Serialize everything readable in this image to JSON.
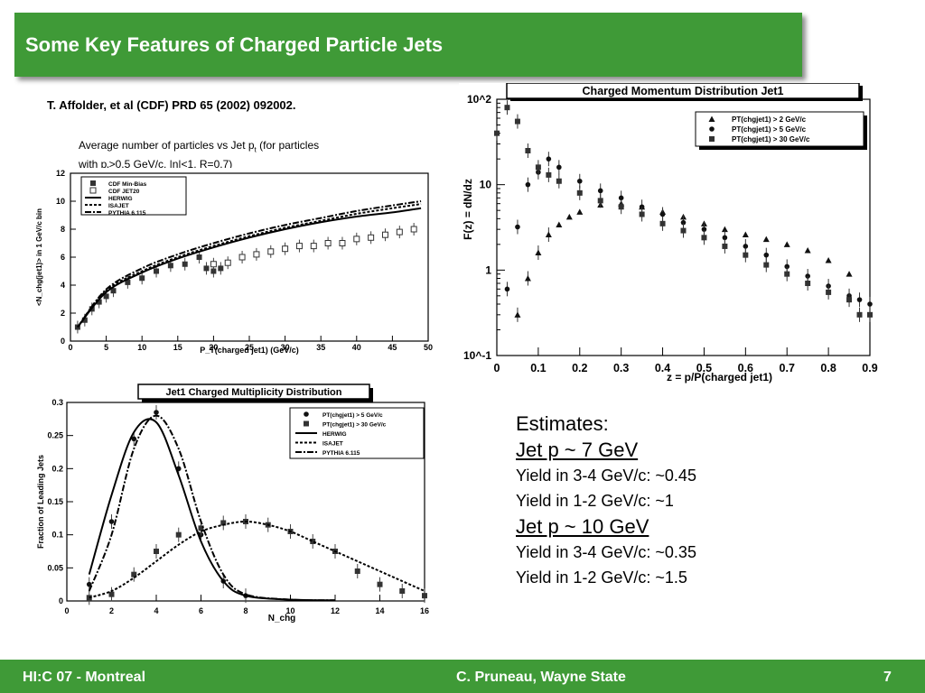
{
  "slide": {
    "title": "Some Key Features of Charged Particle Jets",
    "reference": "T. Affolder, et al (CDF) PRD 65 (2002) 092002.",
    "caption_line1": "Average number of particles vs Jet p",
    "caption_line1_sub": "t",
    "caption_line1_tail": " (for particles",
    "caption_line2_a": "with p",
    "caption_line2_sub": "t",
    "caption_line2_b": ">0.5 GeV/c, |η|<1, R=0.7)"
  },
  "estimates": {
    "heading": "Estimates:",
    "groups": [
      {
        "title": "Jet p ~ 7 GeV",
        "lines": [
          "Yield in 3-4 GeV/c: ~0.45",
          "Yield in 1-2 GeV/c: ~1"
        ]
      },
      {
        "title": "Jet p ~ 10 GeV",
        "lines": [
          "Yield in 3-4 GeV/c: ~0.35",
          "Yield in 1-2 GeV/c: ~1.5"
        ]
      }
    ]
  },
  "footer": {
    "left": "HI:C 07 - Montreal",
    "center": "C. Pruneau, Wayne State",
    "page": "7"
  },
  "chart_data": [
    {
      "type": "scatter",
      "title": "",
      "xlabel": "P_T(charged jet1)  (GeV/c)",
      "ylabel": "<N_chg(jet1)> in 1 GeV/c bin",
      "xlim": [
        0,
        50
      ],
      "ylim": [
        0,
        12
      ],
      "xticks": [
        "0",
        "5",
        "10",
        "15",
        "20",
        "25",
        "30",
        "35",
        "40",
        "45",
        "50"
      ],
      "yticks": [
        "0",
        "2",
        "4",
        "6",
        "8",
        "10",
        "12"
      ],
      "legend": [
        "CDF Min-Bias",
        "CDF JET20",
        "HERWIG",
        "ISAJET",
        "PYTHIA 6.115"
      ],
      "series": [
        {
          "name": "CDF Min-Bias",
          "x": [
            1,
            2,
            3,
            4,
            5,
            6,
            8,
            10,
            12,
            14,
            16,
            18,
            19,
            20,
            21
          ],
          "y": [
            1.0,
            1.5,
            2.3,
            2.8,
            3.2,
            3.6,
            4.2,
            4.5,
            5.0,
            5.4,
            5.5,
            6.0,
            5.2,
            5.0,
            5.2
          ]
        },
        {
          "name": "CDF JET20",
          "x": [
            20,
            22,
            24,
            26,
            28,
            30,
            32,
            34,
            36,
            38,
            40,
            42,
            44,
            46,
            48
          ],
          "y": [
            5.5,
            5.6,
            6.0,
            6.2,
            6.4,
            6.6,
            6.8,
            6.8,
            7.0,
            7.0,
            7.3,
            7.4,
            7.6,
            7.8,
            8.0
          ]
        },
        {
          "name": "HERWIG",
          "x": [
            1,
            5,
            10,
            15,
            20,
            25,
            30,
            35,
            40,
            45,
            49
          ],
          "y": [
            1.0,
            3.5,
            4.9,
            5.9,
            6.7,
            7.4,
            8.0,
            8.5,
            8.9,
            9.2,
            9.5
          ]
        },
        {
          "name": "ISAJET",
          "x": [
            1,
            5,
            10,
            15,
            20,
            25,
            30,
            35,
            40,
            45,
            49
          ],
          "y": [
            1.0,
            3.6,
            5.0,
            6.0,
            6.8,
            7.5,
            8.1,
            8.6,
            9.1,
            9.5,
            9.8
          ]
        },
        {
          "name": "PYTHIA 6.115",
          "x": [
            1,
            5,
            10,
            15,
            20,
            25,
            30,
            35,
            40,
            45,
            49
          ],
          "y": [
            1.0,
            3.7,
            5.2,
            6.2,
            7.0,
            7.7,
            8.3,
            8.8,
            9.3,
            9.7,
            10.0
          ]
        }
      ]
    },
    {
      "type": "scatter",
      "title": "Charged Momentum Distribution Jet1",
      "xlabel": "z = p/P(charged jet1)",
      "ylabel": "F(z) = dN/dz",
      "xlim": [
        0,
        0.9
      ],
      "ylim": [
        0.1,
        100
      ],
      "yscale": "log",
      "xticks": [
        "0",
        "0.1",
        "0.2",
        "0.3",
        "0.4",
        "0.5",
        "0.6",
        "0.7",
        "0.8",
        "0.9"
      ],
      "yticks": [
        "10^-1",
        "1",
        "10",
        "10^2"
      ],
      "legend": [
        "PT(chgjet1) > 2 GeV/c",
        "PT(chgjet1) > 5 GeV/c",
        "PT(chgjet1) > 30 GeV/c"
      ],
      "series": [
        {
          "name": "PT(chgjet1) > 2 GeV/c",
          "x": [
            0.05,
            0.075,
            0.1,
            0.125,
            0.15,
            0.175,
            0.2,
            0.25,
            0.3,
            0.35,
            0.4,
            0.45,
            0.5,
            0.55,
            0.6,
            0.65,
            0.7,
            0.75,
            0.8,
            0.85
          ],
          "y": [
            0.3,
            0.8,
            1.6,
            2.6,
            3.4,
            4.2,
            4.8,
            5.8,
            6.0,
            5.5,
            4.8,
            4.2,
            3.5,
            3.0,
            2.6,
            2.3,
            2.0,
            1.7,
            1.3,
            0.9
          ]
        },
        {
          "name": "PT(chgjet1) > 5 GeV/c",
          "x": [
            0.025,
            0.05,
            0.075,
            0.1,
            0.125,
            0.15,
            0.2,
            0.25,
            0.3,
            0.35,
            0.4,
            0.45,
            0.5,
            0.55,
            0.6,
            0.65,
            0.7,
            0.75,
            0.8,
            0.85,
            0.875,
            0.9
          ],
          "y": [
            0.6,
            3.2,
            10.0,
            14.0,
            20.0,
            16.0,
            11.0,
            8.5,
            7.0,
            5.5,
            4.5,
            3.6,
            3.0,
            2.4,
            1.9,
            1.5,
            1.1,
            0.85,
            0.65,
            0.5,
            0.45,
            0.4
          ]
        },
        {
          "name": "PT(chgjet1) > 30 GeV/c",
          "x": [
            0.0,
            0.025,
            0.05,
            0.075,
            0.1,
            0.125,
            0.15,
            0.2,
            0.25,
            0.3,
            0.35,
            0.4,
            0.45,
            0.5,
            0.55,
            0.6,
            0.65,
            0.7,
            0.75,
            0.8,
            0.85,
            0.875,
            0.9
          ],
          "y": [
            40,
            80,
            55,
            25,
            16,
            13,
            11,
            8.0,
            6.5,
            5.5,
            4.5,
            3.5,
            2.9,
            2.4,
            1.9,
            1.5,
            1.15,
            0.9,
            0.7,
            0.55,
            0.45,
            0.3,
            0.3
          ]
        }
      ]
    },
    {
      "type": "line",
      "title": "Jet1 Charged Multiplicity Distribution",
      "xlabel": "N_chg",
      "ylabel": "Fraction of Leading Jets",
      "xlim": [
        0,
        16
      ],
      "ylim": [
        0,
        0.3
      ],
      "xticks": [
        "0",
        "2",
        "4",
        "6",
        "8",
        "10",
        "12",
        "14",
        "16"
      ],
      "yticks": [
        "0",
        "0.05",
        "0.1",
        "0.15",
        "0.2",
        "0.25",
        "0.3"
      ],
      "legend": [
        "PT(chgjet1) > 5 GeV/c",
        "PT(chgjet1) > 30 GeV/c",
        "HERWIG",
        "ISAJET",
        "PYTHIA 6.115"
      ],
      "series": [
        {
          "name": "PT(chgjet1) > 5 GeV/c",
          "x": [
            1,
            2,
            3,
            4,
            5,
            6,
            7,
            8
          ],
          "y": [
            0.025,
            0.12,
            0.245,
            0.285,
            0.2,
            0.1,
            0.03,
            0.008
          ]
        },
        {
          "name": "PT(chgjet1) > 30 GeV/c",
          "x": [
            1,
            2,
            3,
            4,
            5,
            6,
            7,
            8,
            9,
            10,
            11,
            12,
            13,
            14,
            15,
            16
          ],
          "y": [
            0.005,
            0.01,
            0.04,
            0.075,
            0.1,
            0.11,
            0.118,
            0.12,
            0.115,
            0.105,
            0.09,
            0.075,
            0.045,
            0.025,
            0.015,
            0.008
          ]
        },
        {
          "name": "HERWIG",
          "x": [
            1,
            2,
            3,
            4,
            5,
            6,
            7,
            8,
            10,
            12
          ],
          "y": [
            0.04,
            0.16,
            0.255,
            0.27,
            0.19,
            0.09,
            0.03,
            0.008,
            0.002,
            0.001
          ]
        },
        {
          "name": "ISAJET",
          "x": [
            1,
            2,
            3,
            4,
            5,
            6,
            7,
            8,
            9,
            10,
            11,
            12,
            13,
            14,
            15,
            16
          ],
          "y": [
            0.005,
            0.015,
            0.035,
            0.06,
            0.085,
            0.105,
            0.115,
            0.12,
            0.115,
            0.105,
            0.09,
            0.075,
            0.06,
            0.045,
            0.03,
            0.015
          ]
        },
        {
          "name": "PYTHIA 6.115",
          "x": [
            1,
            2,
            3,
            4,
            5,
            6,
            7,
            8,
            10,
            12
          ],
          "y": [
            0.015,
            0.1,
            0.23,
            0.28,
            0.23,
            0.12,
            0.04,
            0.01,
            0.002,
            0.001
          ]
        }
      ]
    }
  ]
}
